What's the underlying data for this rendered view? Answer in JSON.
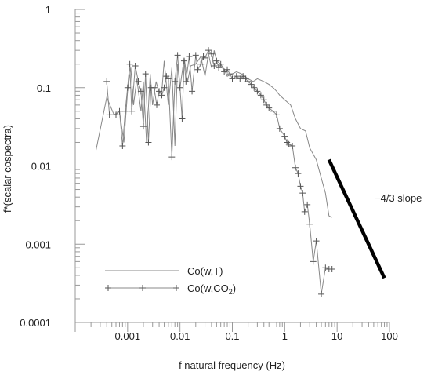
{
  "chart_data": {
    "type": "line",
    "xlabel": "f natural frequency (Hz)",
    "ylabel": "f*(scalar cospectra)",
    "x_scale": "log",
    "y_scale": "log",
    "xlim": [
      0.0001,
      100
    ],
    "ylim": [
      0.0001,
      1
    ],
    "x_ticks": [
      0.001,
      0.01,
      0.1,
      1,
      10,
      100
    ],
    "x_tick_labels": [
      "0.001",
      "0.01",
      "0.1",
      "1",
      "10",
      "100"
    ],
    "y_ticks": [
      0.0001,
      0.001,
      0.01,
      0.1,
      1
    ],
    "y_tick_labels": [
      "0.0001",
      "0.001",
      "0.01",
      "0.1",
      "1"
    ],
    "grid": false,
    "legend_position": "bottom-left",
    "colors": {
      "axis": "#999999",
      "series_line": "#888888",
      "marker": "#555555",
      "slope": "#000000"
    },
    "series": [
      {
        "name": "Co(w,T)",
        "marker": "none",
        "x": [
          0.00025,
          0.0004,
          0.00055,
          0.0007,
          0.00085,
          0.001,
          0.00115,
          0.0013,
          0.0015,
          0.0018,
          0.002,
          0.0023,
          0.0027,
          0.003,
          0.0035,
          0.004,
          0.0045,
          0.005,
          0.006,
          0.007,
          0.008,
          0.009,
          0.01,
          0.012,
          0.014,
          0.016,
          0.02,
          0.025,
          0.03,
          0.035,
          0.04,
          0.045,
          0.05,
          0.06,
          0.07,
          0.08,
          0.1,
          0.12,
          0.15,
          0.2,
          0.25,
          0.3,
          0.4,
          0.5,
          0.6,
          0.7,
          0.8,
          1.0,
          1.3,
          1.6,
          2.0,
          2.5,
          3.0,
          4.0,
          5.0,
          6.0,
          7.0,
          8.0
        ],
        "y": [
          0.016,
          0.075,
          0.045,
          0.05,
          0.02,
          0.09,
          0.18,
          0.06,
          0.13,
          0.05,
          0.12,
          0.02,
          0.15,
          0.06,
          0.12,
          0.085,
          0.09,
          0.22,
          0.06,
          0.18,
          0.018,
          0.2,
          0.1,
          0.24,
          0.12,
          0.19,
          0.2,
          0.25,
          0.14,
          0.27,
          0.18,
          0.3,
          0.22,
          0.2,
          0.17,
          0.14,
          0.15,
          0.16,
          0.15,
          0.13,
          0.12,
          0.13,
          0.12,
          0.11,
          0.1,
          0.09,
          0.08,
          0.07,
          0.06,
          0.04,
          0.03,
          0.028,
          0.017,
          0.012,
          0.007,
          0.0045,
          0.0023,
          0.0022
        ]
      },
      {
        "name": "Co(w,CO2)",
        "marker": "plus",
        "x": [
          0.0004,
          0.00045,
          0.0006,
          0.0007,
          0.0008,
          0.0009,
          0.001,
          0.0011,
          0.0012,
          0.0014,
          0.0016,
          0.0018,
          0.002,
          0.0022,
          0.0025,
          0.0028,
          0.0032,
          0.0036,
          0.004,
          0.0045,
          0.005,
          0.0055,
          0.006,
          0.007,
          0.008,
          0.009,
          0.01,
          0.011,
          0.012,
          0.013,
          0.015,
          0.017,
          0.02,
          0.022,
          0.025,
          0.028,
          0.03,
          0.035,
          0.04,
          0.045,
          0.05,
          0.055,
          0.06,
          0.07,
          0.08,
          0.09,
          0.1,
          0.12,
          0.14,
          0.16,
          0.18,
          0.2,
          0.23,
          0.26,
          0.3,
          0.35,
          0.4,
          0.45,
          0.5,
          0.6,
          0.7,
          0.8,
          1.0,
          1.1,
          1.2,
          1.4,
          1.6,
          1.8,
          2.0,
          2.2,
          2.4,
          2.7,
          3.0,
          3.5,
          4.0,
          5.0,
          6.0,
          7.0,
          8.0
        ],
        "y": [
          0.12,
          0.045,
          0.045,
          0.05,
          0.018,
          0.05,
          0.1,
          0.2,
          0.05,
          0.19,
          0.12,
          0.09,
          0.032,
          0.15,
          0.02,
          0.1,
          0.1,
          0.06,
          0.09,
          0.08,
          0.1,
          0.14,
          0.13,
          0.013,
          0.12,
          0.26,
          0.1,
          0.04,
          0.22,
          0.12,
          0.25,
          0.09,
          0.26,
          0.17,
          0.2,
          0.25,
          0.24,
          0.3,
          0.27,
          0.19,
          0.22,
          0.18,
          0.2,
          0.16,
          0.17,
          0.15,
          0.13,
          0.14,
          0.13,
          0.14,
          0.13,
          0.12,
          0.11,
          0.1,
          0.09,
          0.08,
          0.07,
          0.06,
          0.055,
          0.05,
          0.045,
          0.03,
          0.024,
          0.02,
          0.019,
          0.018,
          0.0095,
          0.008,
          0.0055,
          0.0045,
          0.0026,
          0.0032,
          0.0018,
          0.0006,
          0.0011,
          0.00023,
          0.0005,
          0.00048,
          0.00048
        ]
      }
    ],
    "annotation": {
      "text": "−4/3 slope",
      "line_x": [
        7,
        80
      ],
      "line_y": [
        0.012,
        0.00037
      ]
    }
  }
}
